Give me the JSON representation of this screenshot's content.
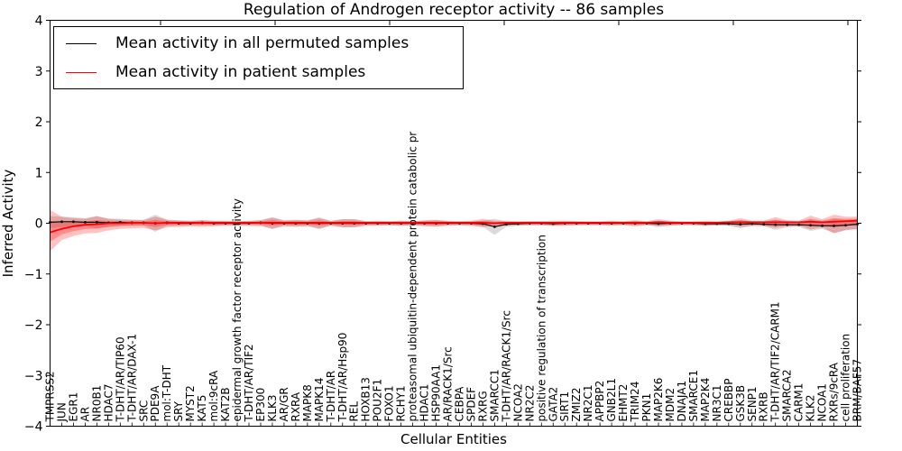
{
  "chart_data": {
    "type": "line",
    "title": "Regulation of Androgen receptor activity -- 86 samples",
    "xlabel": "Cellular Entities",
    "ylabel": "Inferred Activity",
    "ylim": [
      -4,
      4
    ],
    "yticks": [
      4,
      3,
      2,
      1,
      0,
      -1,
      -2,
      -3,
      -4
    ],
    "grid": false,
    "legend_position": "upper left",
    "categories": [
      "TMPRSS2",
      "JUN",
      "EGR1",
      "AR",
      "NR0B1",
      "HDAC7",
      "T-DHT/AR/TIP60",
      "T-DHT/AR/DAX-1",
      "SRC",
      "PDE9A",
      "mol:T-DHT",
      "SRY",
      "MYST2",
      "KAT5",
      "mol:9cRA",
      "KAT2B",
      "epidermal growth factor receptor activity",
      "T-DHT/AR/TIF2",
      "EP300",
      "KLK3",
      "AR/GR",
      "RXRA",
      "MAPK8",
      "MAPK14",
      "T-DHT/AR",
      "T-DHT/AR/Hsp90",
      "REL",
      "HOXB13",
      "POU2F1",
      "FOXO1",
      "RCHY1",
      "proteasomal ubiquitin-dependent protein catabolic pr",
      "HDAC1",
      "HSP90AA1",
      "AR/RACK1/Src",
      "CEBPA",
      "SPDEF",
      "RXRG",
      "SMARCC1",
      "T-DHT/AR/RACK1/Src",
      "NCOA2",
      "NR2C2",
      "positive regulation of transcription",
      "GATA2",
      "SIRT1",
      "ZMIZ2",
      "NR2C1",
      "APPBP2",
      "GNB2L1",
      "EHMT2",
      "TRIM24",
      "PKN1",
      "MAP2K6",
      "MDM2",
      "DNAJA1",
      "SMARCE1",
      "MAP2K4",
      "NR3C1",
      "CREBBP",
      "GSK3B",
      "SENP1",
      "RXRB",
      "T-DHT/AR/TIF2/CARM1",
      "SMARCA2",
      "CARM1",
      "KLK2",
      "NCOA1",
      "RXRs/9cRA",
      "cell proliferation",
      "BRM/BAF57"
    ],
    "series": [
      {
        "name": "Mean activity in all permuted samples",
        "color": "#000000",
        "band_color": "#d9d9d9",
        "values": [
          0.02,
          0.03,
          0.03,
          0.02,
          0.02,
          0.01,
          0.02,
          0.01,
          0.01,
          0.0,
          0.01,
          0.0,
          0.0,
          0.01,
          0.0,
          0.0,
          0.0,
          0.0,
          0.01,
          0.0,
          0.0,
          0.0,
          0.0,
          0.0,
          0.0,
          0.0,
          0.0,
          0.0,
          0.0,
          0.0,
          0.0,
          0.0,
          0.0,
          0.0,
          0.0,
          0.0,
          0.0,
          -0.01,
          -0.07,
          -0.02,
          -0.01,
          0.0,
          0.0,
          -0.01,
          0.0,
          0.0,
          0.0,
          0.0,
          0.0,
          0.0,
          0.0,
          0.0,
          -0.01,
          0.0,
          0.0,
          0.0,
          -0.01,
          -0.01,
          -0.01,
          -0.02,
          -0.01,
          -0.02,
          -0.03,
          -0.03,
          -0.03,
          -0.04,
          -0.05,
          -0.05,
          -0.04,
          -0.02
        ],
        "band_halfwidth": [
          0.12,
          0.1,
          0.09,
          0.08,
          0.12,
          0.08,
          0.07,
          0.06,
          0.06,
          0.17,
          0.06,
          0.05,
          0.05,
          0.05,
          0.05,
          0.04,
          0.04,
          0.04,
          0.05,
          0.12,
          0.05,
          0.06,
          0.05,
          0.12,
          0.04,
          0.08,
          0.08,
          0.04,
          0.04,
          0.04,
          0.05,
          0.04,
          0.05,
          0.06,
          0.04,
          0.04,
          0.04,
          0.06,
          0.16,
          0.05,
          0.04,
          0.04,
          0.04,
          0.04,
          0.04,
          0.04,
          0.03,
          0.03,
          0.04,
          0.03,
          0.05,
          0.03,
          0.06,
          0.04,
          0.03,
          0.03,
          0.04,
          0.03,
          0.04,
          0.08,
          0.04,
          0.04,
          0.1,
          0.05,
          0.04,
          0.11,
          0.06,
          0.14,
          0.1,
          0.1
        ]
      },
      {
        "name": "Mean activity in patient samples",
        "color": "#ff0000",
        "band_color": "#f4a9a9",
        "values": [
          -0.18,
          -0.11,
          -0.06,
          -0.03,
          -0.02,
          0.0,
          0.0,
          0.01,
          0.01,
          0.0,
          0.01,
          0.01,
          0.01,
          0.01,
          0.01,
          0.01,
          0.01,
          0.01,
          0.01,
          0.01,
          0.01,
          0.01,
          0.01,
          0.01,
          0.01,
          0.01,
          0.01,
          0.01,
          0.01,
          0.01,
          0.01,
          0.01,
          0.01,
          0.01,
          0.01,
          0.01,
          0.01,
          0.01,
          0.0,
          0.01,
          0.01,
          0.01,
          0.01,
          0.01,
          0.01,
          0.01,
          0.01,
          0.01,
          0.01,
          0.01,
          0.01,
          0.01,
          0.02,
          0.01,
          0.01,
          0.01,
          0.01,
          0.01,
          0.02,
          0.02,
          0.02,
          0.02,
          0.02,
          0.02,
          0.02,
          0.03,
          0.02,
          0.03,
          0.04,
          0.05
        ],
        "band_upper": [
          0.26,
          0.13,
          0.1,
          0.09,
          0.14,
          0.09,
          0.07,
          0.07,
          0.06,
          0.13,
          0.07,
          0.06,
          0.05,
          0.06,
          0.05,
          0.05,
          0.04,
          0.05,
          0.06,
          0.11,
          0.06,
          0.07,
          0.06,
          0.1,
          0.05,
          0.08,
          0.08,
          0.04,
          0.05,
          0.04,
          0.05,
          0.04,
          0.06,
          0.07,
          0.05,
          0.04,
          0.05,
          0.09,
          0.05,
          0.05,
          0.04,
          0.04,
          0.04,
          0.05,
          0.05,
          0.04,
          0.04,
          0.04,
          0.05,
          0.04,
          0.06,
          0.04,
          0.08,
          0.05,
          0.04,
          0.04,
          0.05,
          0.04,
          0.05,
          0.1,
          0.05,
          0.05,
          0.12,
          0.06,
          0.05,
          0.15,
          0.08,
          0.17,
          0.13,
          0.13
        ],
        "band_lower": [
          -0.55,
          -0.33,
          -0.25,
          -0.2,
          -0.19,
          -0.14,
          -0.11,
          -0.1,
          -0.09,
          -0.14,
          -0.08,
          -0.07,
          -0.06,
          -0.07,
          -0.06,
          -0.05,
          -0.05,
          -0.05,
          -0.06,
          -0.1,
          -0.06,
          -0.07,
          -0.06,
          -0.1,
          -0.05,
          -0.08,
          -0.08,
          -0.05,
          -0.05,
          -0.04,
          -0.05,
          -0.04,
          -0.06,
          -0.07,
          -0.05,
          -0.04,
          -0.05,
          -0.08,
          -0.05,
          -0.05,
          -0.04,
          -0.04,
          -0.04,
          -0.05,
          -0.05,
          -0.04,
          -0.04,
          -0.04,
          -0.05,
          -0.04,
          -0.06,
          -0.04,
          -0.06,
          -0.05,
          -0.04,
          -0.04,
          -0.05,
          -0.04,
          -0.04,
          -0.07,
          -0.05,
          -0.05,
          -0.09,
          -0.06,
          -0.05,
          -0.12,
          -0.08,
          -0.2,
          -0.13,
          -0.11
        ]
      }
    ]
  }
}
